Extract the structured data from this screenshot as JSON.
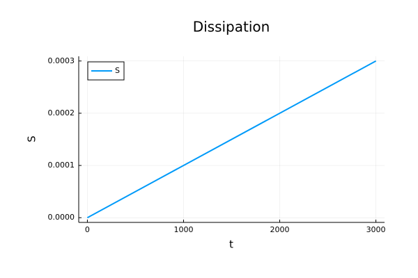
{
  "chart_data": {
    "type": "line",
    "title": "Dissipation",
    "x_label": "t",
    "y_label": "S",
    "x": [
      0,
      3000
    ],
    "series": [
      {
        "name": "S",
        "color": "#009af9",
        "values": [
          0,
          0.0003
        ]
      }
    ],
    "xlim": [
      -90,
      3090
    ],
    "xticks": [
      0,
      1000,
      2000,
      3000
    ],
    "ylim": [
      -9e-06,
      0.000309
    ],
    "yticks": [
      {
        "value": 0,
        "label": "0.0000"
      },
      {
        "value": 0.0001,
        "label": "0.0001"
      },
      {
        "value": 0.0002,
        "label": "0.0002"
      },
      {
        "value": 0.0003,
        "label": "0.0003"
      }
    ],
    "grid": true,
    "legend": "top-left"
  }
}
